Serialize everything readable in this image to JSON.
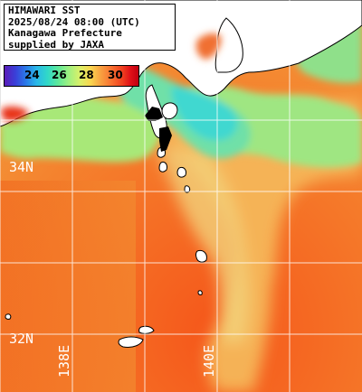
{
  "info": {
    "line1": "HIMAWARI SST",
    "line2": "2025/08/24 08:00 (UTC)",
    "line3": "Kanagawa Prefecture",
    "line4": "supplied by JAXA"
  },
  "colorbar": {
    "ticks": [
      "24",
      "26",
      "28",
      "30"
    ]
  },
  "latitude_labels": [
    "34N",
    "32N"
  ],
  "longitude_labels": [
    "138E",
    "140E"
  ],
  "colors": {
    "land": "#ffffff",
    "coast": "#000000",
    "grid": "#ffffff",
    "sea_warm": "#f05a1e",
    "sea_mid": "#f8a040",
    "sea_cool": "#9ff080",
    "bay_cool": "#3fe0c8"
  }
}
